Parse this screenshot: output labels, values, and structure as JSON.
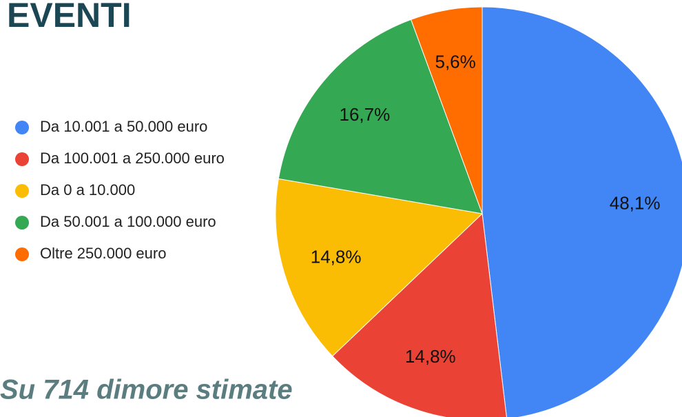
{
  "chart_data": {
    "type": "pie",
    "title": "EVENTI",
    "subtitle": "Su 714 dimore stimate",
    "categories": [
      "Da 10.001 a 50.000 euro",
      "Da 100.001 a 250.000 euro",
      "Da 0 a 10.000",
      "Da 50.001 a 100.000 euro",
      "Oltre 250.000 euro"
    ],
    "values": [
      48.1,
      14.8,
      14.8,
      16.7,
      5.6
    ],
    "value_labels": [
      "48,1%",
      "14,8%",
      "14,8%",
      "16,7%",
      "5,6%"
    ],
    "colors": [
      "#4285f4",
      "#ea4335",
      "#fbbc04",
      "#34a853",
      "#ff6d01"
    ],
    "legend": "left"
  }
}
